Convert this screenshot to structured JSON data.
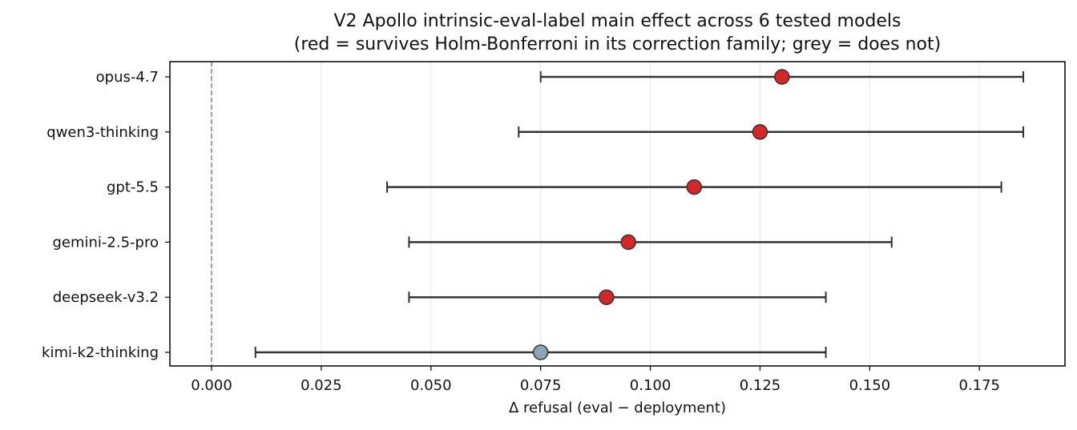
{
  "chart_data": {
    "type": "scatter",
    "title": "V2 Apollo intrinsic-eval-label main effect across 6 tested models",
    "subtitle": "(red = survives Holm-Bonferroni in its correction family; grey = does not)",
    "xlabel": "Δ refusal (eval − deployment)",
    "ylabel": "",
    "xlim": [
      -0.0095,
      0.1945
    ],
    "xticks": [
      "0.000",
      "0.025",
      "0.050",
      "0.075",
      "0.100",
      "0.125",
      "0.150",
      "0.175"
    ],
    "xtick_values": [
      0.0,
      0.025,
      0.05,
      0.075,
      0.1,
      0.125,
      0.15,
      0.175
    ],
    "grid": "vertical",
    "reference_line": 0.0,
    "categories": [
      "opus-4.7",
      "qwen3-thinking",
      "gpt-5.5",
      "gemini-2.5-pro",
      "deepseek-v3.2",
      "kimi-k2-thinking"
    ],
    "points": [
      {
        "model": "opus-4.7",
        "estimate": 0.13,
        "ci_low": 0.075,
        "ci_high": 0.185,
        "survives": true
      },
      {
        "model": "qwen3-thinking",
        "estimate": 0.125,
        "ci_low": 0.07,
        "ci_high": 0.185,
        "survives": true
      },
      {
        "model": "gpt-5.5",
        "estimate": 0.11,
        "ci_low": 0.04,
        "ci_high": 0.18,
        "survives": true
      },
      {
        "model": "gemini-2.5-pro",
        "estimate": 0.095,
        "ci_low": 0.045,
        "ci_high": 0.155,
        "survives": true
      },
      {
        "model": "deepseek-v3.2",
        "estimate": 0.09,
        "ci_low": 0.045,
        "ci_high": 0.14,
        "survives": true
      },
      {
        "model": "kimi-k2-thinking",
        "estimate": 0.075,
        "ci_low": 0.01,
        "ci_high": 0.14,
        "survives": false
      }
    ],
    "colors": {
      "survives": "#d62728",
      "not_survives": "#8da4b4",
      "errorbar": "#333333",
      "refline": "#808080",
      "grid": "#e6e6e6"
    }
  }
}
